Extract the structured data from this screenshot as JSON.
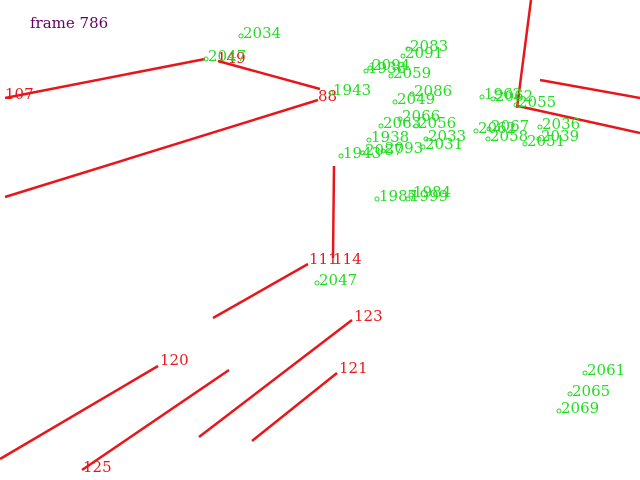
{
  "frame": {
    "label": "frame 786"
  },
  "segments": [
    {
      "id": "107",
      "label": "107"
    },
    {
      "id": "149",
      "label": "149"
    },
    {
      "id": "88",
      "label": "88"
    },
    {
      "id": "114",
      "label": "114"
    },
    {
      "id": "111",
      "label": "111"
    },
    {
      "id": "120",
      "label": "120"
    },
    {
      "id": "123",
      "label": "123"
    },
    {
      "id": "121",
      "label": "121"
    },
    {
      "id": "125",
      "label": "125"
    },
    {
      "id": "top-right-a",
      "label": ""
    },
    {
      "id": "top-right-b",
      "label": ""
    },
    {
      "id": "top-right-c",
      "label": ""
    },
    {
      "id": "left-long",
      "label": ""
    }
  ],
  "points": [
    "2034",
    "2047",
    "1943",
    "2083",
    "2091",
    "2094",
    "1938",
    "2059",
    "2086",
    "2049",
    "2066",
    "2056",
    "2033",
    "2031",
    "2062",
    "2058",
    "1984",
    "1987",
    "1999",
    "2047",
    "2061",
    "2065",
    "2069",
    "2062",
    "2067",
    "2063",
    "2051",
    "2036",
    "2039",
    "2055",
    "1938",
    "1962",
    "1943",
    "2087",
    "2093"
  ],
  "colors": {
    "segment": "#e8161a",
    "point": "#22dd22",
    "frame_text": "#660066",
    "background": "#ffffff"
  }
}
